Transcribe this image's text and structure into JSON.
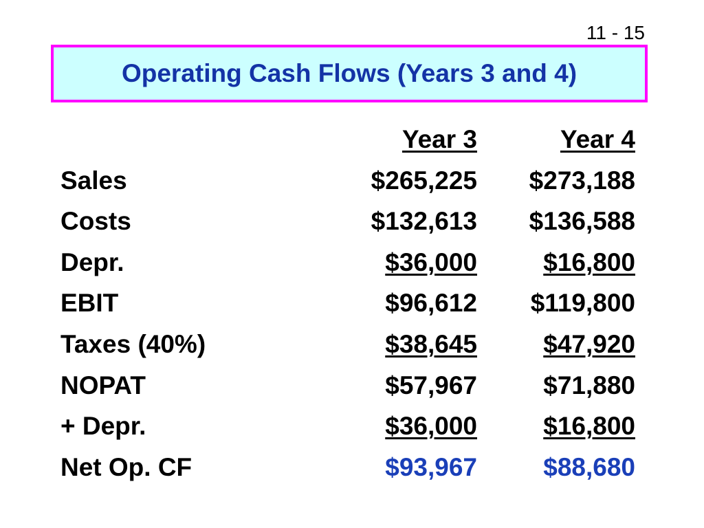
{
  "slide": {
    "page_number": "11 - 15",
    "title": "Operating Cash Flows (Years 3 and 4)"
  },
  "table": {
    "headers": {
      "year3": "Year 3",
      "year4": "Year 4"
    },
    "rows": [
      {
        "label": "Sales",
        "year3": "$265,225",
        "year4": "$273,188",
        "underline": false,
        "highlight": false
      },
      {
        "label": "Costs",
        "year3": "$132,613",
        "year4": "$136,588",
        "underline": false,
        "highlight": false
      },
      {
        "label": "Depr.",
        "year3": "$36,000",
        "year4": "$16,800",
        "underline": true,
        "highlight": false
      },
      {
        "label": "EBIT",
        "year3": "$96,612",
        "year4": "$119,800",
        "underline": false,
        "highlight": false
      },
      {
        "label": "Taxes (40%)",
        "year3": "$38,645",
        "year4": "$47,920",
        "underline": true,
        "highlight": false
      },
      {
        "label": "NOPAT",
        "year3": "$57,967",
        "year4": "$71,880",
        "underline": false,
        "highlight": false
      },
      {
        "label": "+ Depr.",
        "year3": "$36,000",
        "year4": "$16,800",
        "underline": true,
        "highlight": false
      },
      {
        "label": "Net Op. CF",
        "year3": "$93,967",
        "year4": "$88,680",
        "underline": false,
        "highlight": true
      }
    ]
  },
  "colors": {
    "title_text": "#1433a6",
    "title_background": "#ccffff",
    "title_border": "#ff00ff",
    "highlight_value": "#1a3fb8"
  }
}
